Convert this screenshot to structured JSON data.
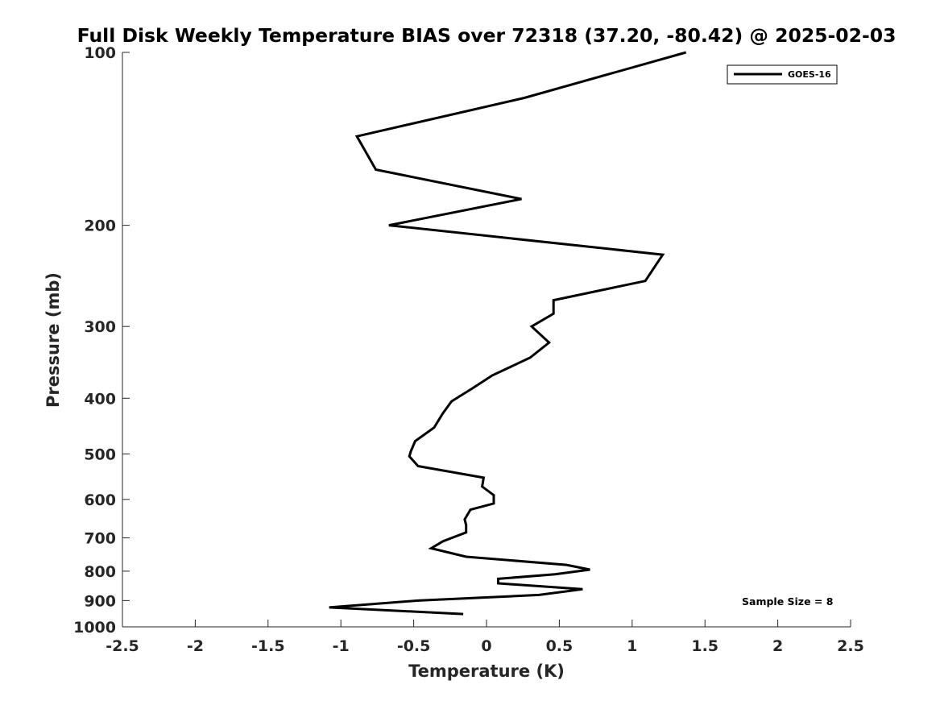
{
  "chart_data": {
    "type": "line",
    "title": "Full Disk Weekly Temperature BIAS over 72318 (37.20, -80.42) @ 2025-02-03",
    "xlabel": "Temperature (K)",
    "ylabel": "Pressure (mb)",
    "xlim": [
      -2.5,
      2.5
    ],
    "ylim": [
      1000,
      100
    ],
    "yscale": "log",
    "x_ticks": [
      "-2.5",
      "-2",
      "-1.5",
      "-1",
      "-0.5",
      "0",
      "0.5",
      "1",
      "1.5",
      "2",
      "2.5"
    ],
    "y_ticks": [
      {
        "value": 100,
        "label": "100"
      },
      {
        "value": 200,
        "label": "200"
      },
      {
        "value": 300,
        "label": "300"
      },
      {
        "value": 400,
        "label": "400"
      },
      {
        "value": 500,
        "label": "500"
      },
      {
        "value": 600,
        "label": "600"
      },
      {
        "value": 700,
        "label": "700"
      },
      {
        "value": 800,
        "label": "800"
      },
      {
        "value": 900,
        "label": "900"
      },
      {
        "value": 1000,
        "label": "1000"
      }
    ],
    "grid": false,
    "legend_position": "top-right",
    "series": [
      {
        "name": "GOES-16",
        "color": "#000000",
        "points": [
          {
            "x": 1.37,
            "y": 100
          },
          {
            "x": 0.26,
            "y": 120
          },
          {
            "x": -0.89,
            "y": 140
          },
          {
            "x": -0.76,
            "y": 160
          },
          {
            "x": 0.24,
            "y": 180
          },
          {
            "x": -0.67,
            "y": 200
          },
          {
            "x": 1.21,
            "y": 225
          },
          {
            "x": 1.09,
            "y": 250
          },
          {
            "x": 0.46,
            "y": 270
          },
          {
            "x": 0.46,
            "y": 285
          },
          {
            "x": 0.31,
            "y": 300
          },
          {
            "x": 0.43,
            "y": 320
          },
          {
            "x": 0.3,
            "y": 340
          },
          {
            "x": 0.04,
            "y": 365
          },
          {
            "x": -0.1,
            "y": 385
          },
          {
            "x": -0.24,
            "y": 405
          },
          {
            "x": -0.3,
            "y": 425
          },
          {
            "x": -0.36,
            "y": 450
          },
          {
            "x": -0.49,
            "y": 475
          },
          {
            "x": -0.52,
            "y": 495
          },
          {
            "x": -0.53,
            "y": 505
          },
          {
            "x": -0.47,
            "y": 525
          },
          {
            "x": -0.02,
            "y": 550
          },
          {
            "x": -0.03,
            "y": 570
          },
          {
            "x": 0.05,
            "y": 590
          },
          {
            "x": 0.05,
            "y": 610
          },
          {
            "x": -0.11,
            "y": 625
          },
          {
            "x": -0.15,
            "y": 650
          },
          {
            "x": -0.14,
            "y": 665
          },
          {
            "x": -0.14,
            "y": 685
          },
          {
            "x": -0.3,
            "y": 710
          },
          {
            "x": -0.38,
            "y": 730
          },
          {
            "x": -0.14,
            "y": 755
          },
          {
            "x": 0.55,
            "y": 780
          },
          {
            "x": 0.71,
            "y": 795
          },
          {
            "x": 0.47,
            "y": 810
          },
          {
            "x": 0.08,
            "y": 825
          },
          {
            "x": 0.08,
            "y": 840
          },
          {
            "x": 0.66,
            "y": 860
          },
          {
            "x": 0.36,
            "y": 880
          },
          {
            "x": -0.47,
            "y": 900
          },
          {
            "x": -1.08,
            "y": 925
          },
          {
            "x": -0.16,
            "y": 950
          }
        ]
      }
    ],
    "annotation": "Sample Size = 8"
  }
}
